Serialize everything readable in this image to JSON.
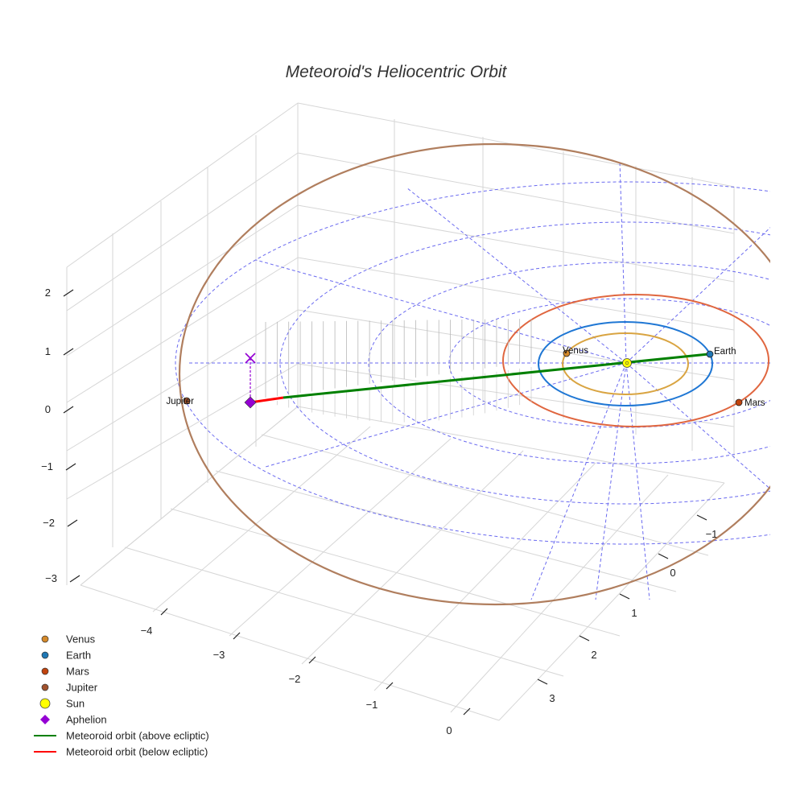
{
  "chart_data": {
    "type": "scatter3d",
    "title": "Meteoroid's Heliocentric Orbit",
    "axes": {
      "x_ticks": [
        "−4",
        "−3",
        "−2",
        "−1",
        "0"
      ],
      "y_ticks": [
        "−1",
        "0",
        "1",
        "2",
        "3"
      ],
      "z_ticks": [
        "2",
        "1",
        "0",
        "−1",
        "−2",
        "−3"
      ]
    },
    "bodies": [
      {
        "name": "Venus",
        "label": "Venus",
        "color": "#d4892a"
      },
      {
        "name": "Earth",
        "label": "Earth",
        "color": "#1f77b4"
      },
      {
        "name": "Mars",
        "label": "Mars",
        "color": "#c1440e"
      },
      {
        "name": "Jupiter",
        "label": "Jupiter",
        "color": "#a0522d"
      }
    ],
    "sun": {
      "name": "Sun",
      "color": "#ffff00"
    },
    "aphelion": {
      "name": "Aphelion",
      "color": "#9400d3"
    },
    "meteoroid": {
      "above": {
        "name": "Meteoroid orbit (above ecliptic)",
        "color": "#008000"
      },
      "below": {
        "name": "Meteoroid orbit (below ecliptic)",
        "color": "#ff0000"
      }
    },
    "orbit_colors": {
      "venus": "#d9a441",
      "earth": "#1f77d4",
      "mars": "#e0663f",
      "jupiter": "#b07e5e"
    },
    "grid": true,
    "ecliptic_grid_color": "#6a6af0",
    "legend_position": "bottom-left",
    "legend": [
      {
        "label": "Venus",
        "marker": "circle",
        "color": "#d4892a"
      },
      {
        "label": "Earth",
        "marker": "circle",
        "color": "#1f77b4"
      },
      {
        "label": "Mars",
        "marker": "circle",
        "color": "#c1440e"
      },
      {
        "label": "Jupiter",
        "marker": "circle",
        "color": "#a0522d"
      },
      {
        "label": "Sun",
        "marker": "circle-large",
        "color": "#ffff00"
      },
      {
        "label": "Aphelion",
        "marker": "diamond",
        "color": "#9400d3"
      },
      {
        "label": "Meteoroid orbit (above ecliptic)",
        "marker": "line",
        "color": "#008000"
      },
      {
        "label": "Meteoroid orbit (below ecliptic)",
        "marker": "line",
        "color": "#ff0000"
      }
    ]
  }
}
